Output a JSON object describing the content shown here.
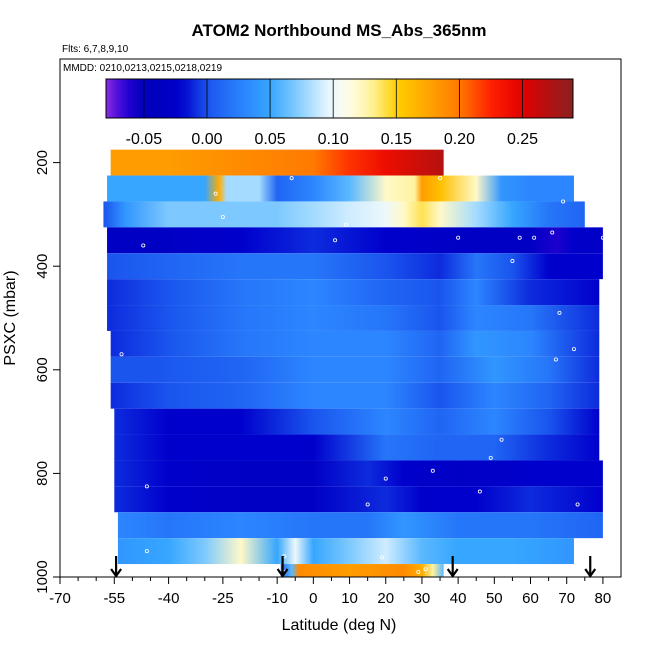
{
  "chart_data": {
    "type": "heatmap",
    "title": "ATOM2 Northbound MS_Abs_365nm",
    "flights_label": "Flts: 6,7,8,9,10",
    "dates_label": "MMDD: 0210,0213,0215,0218,0219",
    "xlabel": "Latitude (deg N)",
    "ylabel": "PSXC (mbar)",
    "x_ticks": [
      -70,
      -55,
      -40,
      -25,
      -10,
      0,
      10,
      20,
      30,
      40,
      50,
      60,
      70,
      80
    ],
    "x_tick_labels": [
      "-70",
      "-55",
      "-40",
      "-25",
      "-10",
      "0",
      "10",
      "20",
      "30",
      "40",
      "50",
      "60",
      "70",
      "80"
    ],
    "x_minor_ticks": [
      -65,
      -60,
      -50,
      -45,
      -35,
      -30,
      -20,
      -15,
      -5,
      5,
      15,
      25,
      35,
      45,
      55,
      65,
      75
    ],
    "y_ticks": [
      200,
      400,
      600,
      800,
      1000
    ],
    "y_tick_labels": [
      "200",
      "400",
      "600",
      "800",
      "1000"
    ],
    "xlim": [
      -70,
      85
    ],
    "ylim": [
      1000,
      0
    ],
    "colorbar": {
      "min": -0.08,
      "max": 0.29,
      "ticks": [
        -0.05,
        0.0,
        0.05,
        0.1,
        0.15,
        0.2,
        0.25
      ],
      "tick_labels": [
        "-0.05",
        "0.00",
        "0.05",
        "0.10",
        "0.15",
        "0.20",
        "0.25"
      ]
    },
    "legend": "top",
    "grid": false,
    "profile_latitudes": [
      -54.5,
      -8.5,
      38.5,
      76.5
    ],
    "layers": [
      {
        "p_top": 175,
        "p_bot": 225,
        "lat_min": -56,
        "lat_max": 36,
        "values": [
          [
            -56,
            0.18
          ],
          [
            -40,
            0.18
          ],
          [
            -20,
            0.19
          ],
          [
            0,
            0.2
          ],
          [
            10,
            0.22
          ],
          [
            20,
            0.24
          ],
          [
            36,
            0.27
          ]
        ]
      },
      {
        "p_top": 225,
        "p_bot": 275,
        "lat_min": -57,
        "lat_max": 72,
        "values": [
          [
            -57,
            0.05
          ],
          [
            -30,
            0.05
          ],
          [
            -26,
            0.17
          ],
          [
            -24,
            0.08
          ],
          [
            -15,
            0.08
          ],
          [
            -10,
            0.01
          ],
          [
            0,
            0.03
          ],
          [
            10,
            0.06
          ],
          [
            20,
            0.12
          ],
          [
            28,
            0.13
          ],
          [
            30,
            0.18
          ],
          [
            35,
            0.16
          ],
          [
            45,
            0.12
          ],
          [
            52,
            0.04
          ],
          [
            60,
            0.03
          ],
          [
            72,
            0.03
          ]
        ]
      },
      {
        "p_top": 275,
        "p_bot": 325,
        "lat_min": -58,
        "lat_max": 75,
        "values": [
          [
            -58,
            0.0
          ],
          [
            -52,
            0.04
          ],
          [
            -40,
            0.07
          ],
          [
            -25,
            0.07
          ],
          [
            -10,
            0.07
          ],
          [
            0,
            0.08
          ],
          [
            10,
            0.09
          ],
          [
            20,
            0.1
          ],
          [
            25,
            0.12
          ],
          [
            30,
            0.14
          ],
          [
            35,
            0.12
          ],
          [
            45,
            0.08
          ],
          [
            55,
            0.05
          ],
          [
            65,
            0.02
          ],
          [
            75,
            0.01
          ]
        ]
      },
      {
        "p_top": 325,
        "p_bot": 375,
        "lat_min": -57,
        "lat_max": 80,
        "values": [
          [
            -57,
            -0.03
          ],
          [
            -40,
            -0.03
          ],
          [
            -20,
            -0.02
          ],
          [
            0,
            -0.01
          ],
          [
            20,
            -0.02
          ],
          [
            40,
            -0.03
          ],
          [
            60,
            -0.03
          ],
          [
            67,
            -0.06
          ],
          [
            72,
            -0.02
          ],
          [
            80,
            -0.03
          ]
        ]
      },
      {
        "p_top": 375,
        "p_bot": 425,
        "lat_min": -57,
        "lat_max": 80,
        "values": [
          [
            -57,
            0.0
          ],
          [
            -40,
            0.01
          ],
          [
            -20,
            0.02
          ],
          [
            0,
            0.02
          ],
          [
            20,
            0.0
          ],
          [
            35,
            -0.01
          ],
          [
            45,
            0.02
          ],
          [
            55,
            0.0
          ],
          [
            65,
            -0.02
          ],
          [
            80,
            -0.02
          ]
        ]
      },
      {
        "p_top": 425,
        "p_bot": 475,
        "lat_min": -57,
        "lat_max": 79,
        "values": [
          [
            -57,
            -0.01
          ],
          [
            -40,
            0.0
          ],
          [
            -20,
            0.02
          ],
          [
            0,
            0.03
          ],
          [
            20,
            0.01
          ],
          [
            35,
            0.0
          ],
          [
            45,
            0.03
          ],
          [
            60,
            -0.01
          ],
          [
            79,
            -0.02
          ]
        ]
      },
      {
        "p_top": 475,
        "p_bot": 525,
        "lat_min": -57,
        "lat_max": 79,
        "values": [
          [
            -57,
            -0.01
          ],
          [
            -40,
            0.0
          ],
          [
            -20,
            0.02
          ],
          [
            0,
            0.03
          ],
          [
            20,
            0.02
          ],
          [
            35,
            0.0
          ],
          [
            45,
            0.03
          ],
          [
            60,
            0.02
          ],
          [
            79,
            -0.01
          ]
        ]
      },
      {
        "p_top": 525,
        "p_bot": 575,
        "lat_min": -56,
        "lat_max": 79,
        "values": [
          [
            -56,
            -0.01
          ],
          [
            -40,
            0.0
          ],
          [
            -20,
            0.02
          ],
          [
            0,
            0.03
          ],
          [
            20,
            0.03
          ],
          [
            35,
            0.01
          ],
          [
            45,
            0.04
          ],
          [
            60,
            0.03
          ],
          [
            79,
            -0.01
          ]
        ]
      },
      {
        "p_top": 575,
        "p_bot": 625,
        "lat_min": -56,
        "lat_max": 79,
        "values": [
          [
            -56,
            0.0
          ],
          [
            -45,
            0.0
          ],
          [
            -20,
            0.01
          ],
          [
            0,
            0.03
          ],
          [
            20,
            0.03
          ],
          [
            35,
            0.01
          ],
          [
            50,
            0.04
          ],
          [
            65,
            0.02
          ],
          [
            79,
            -0.01
          ]
        ]
      },
      {
        "p_top": 625,
        "p_bot": 675,
        "lat_min": -56,
        "lat_max": 79,
        "values": [
          [
            -56,
            -0.01
          ],
          [
            -40,
            0.0
          ],
          [
            -20,
            0.01
          ],
          [
            0,
            0.03
          ],
          [
            20,
            0.03
          ],
          [
            35,
            0.0
          ],
          [
            50,
            0.03
          ],
          [
            65,
            0.01
          ],
          [
            79,
            -0.01
          ]
        ]
      },
      {
        "p_top": 675,
        "p_bot": 725,
        "lat_min": -55,
        "lat_max": 79,
        "values": [
          [
            -55,
            -0.01
          ],
          [
            -40,
            -0.02
          ],
          [
            -20,
            -0.02
          ],
          [
            0,
            0.0
          ],
          [
            20,
            0.03
          ],
          [
            35,
            0.01
          ],
          [
            50,
            0.03
          ],
          [
            65,
            0.0
          ],
          [
            79,
            -0.02
          ]
        ]
      },
      {
        "p_top": 725,
        "p_bot": 775,
        "lat_min": -55,
        "lat_max": 79,
        "values": [
          [
            -55,
            -0.01
          ],
          [
            -40,
            -0.02
          ],
          [
            -20,
            -0.02
          ],
          [
            0,
            -0.02
          ],
          [
            20,
            0.02
          ],
          [
            35,
            0.01
          ],
          [
            50,
            0.01
          ],
          [
            65,
            -0.01
          ],
          [
            79,
            -0.02
          ]
        ]
      },
      {
        "p_top": 775,
        "p_bot": 825,
        "lat_min": -55,
        "lat_max": 80,
        "values": [
          [
            -55,
            -0.01
          ],
          [
            -40,
            -0.02
          ],
          [
            -20,
            -0.03
          ],
          [
            0,
            -0.03
          ],
          [
            15,
            -0.01
          ],
          [
            25,
            -0.02
          ],
          [
            40,
            -0.03
          ],
          [
            60,
            -0.02
          ],
          [
            80,
            -0.02
          ]
        ]
      },
      {
        "p_top": 825,
        "p_bot": 875,
        "lat_min": -55,
        "lat_max": 80,
        "values": [
          [
            -55,
            -0.01
          ],
          [
            -40,
            -0.02
          ],
          [
            -20,
            -0.03
          ],
          [
            0,
            -0.03
          ],
          [
            20,
            -0.01
          ],
          [
            30,
            -0.02
          ],
          [
            45,
            -0.02
          ],
          [
            60,
            -0.01
          ],
          [
            80,
            -0.02
          ]
        ]
      },
      {
        "p_top": 875,
        "p_bot": 925,
        "lat_min": -54,
        "lat_max": 80,
        "values": [
          [
            -54,
            0.03
          ],
          [
            -40,
            0.02
          ],
          [
            -20,
            0.03
          ],
          [
            0,
            0.02
          ],
          [
            15,
            0.02
          ],
          [
            25,
            0.04
          ],
          [
            40,
            0.02
          ],
          [
            60,
            0.02
          ],
          [
            80,
            0.01
          ]
        ]
      },
      {
        "p_top": 925,
        "p_bot": 975,
        "lat_min": -54,
        "lat_max": 72,
        "values": [
          [
            -54,
            0.04
          ],
          [
            -40,
            0.05
          ],
          [
            -30,
            0.07
          ],
          [
            -20,
            0.12
          ],
          [
            -10,
            0.05
          ],
          [
            -5,
            0.1
          ],
          [
            0,
            0.05
          ],
          [
            10,
            0.07
          ],
          [
            20,
            0.09
          ],
          [
            30,
            0.06
          ],
          [
            40,
            0.05
          ],
          [
            55,
            0.05
          ],
          [
            72,
            0.04
          ]
        ]
      },
      {
        "p_top": 975,
        "p_bot": 1010,
        "lat_min": -9,
        "lat_max": 36,
        "values": [
          [
            -9,
            0.01
          ],
          [
            -6,
            0.06
          ],
          [
            -4,
            0.19
          ],
          [
            10,
            0.18
          ],
          [
            25,
            0.19
          ],
          [
            30,
            0.17
          ],
          [
            33,
            0.13
          ],
          [
            36,
            0.06
          ]
        ]
      }
    ],
    "sample_points": [
      [
        -27,
        260
      ],
      [
        -6,
        230
      ],
      [
        -25,
        305
      ],
      [
        9,
        320
      ],
      [
        35,
        230
      ],
      [
        69,
        275
      ],
      [
        73,
        260
      ],
      [
        6,
        350
      ],
      [
        -47,
        360
      ],
      [
        40,
        345
      ],
      [
        57,
        345
      ],
      [
        61,
        345
      ],
      [
        66,
        335
      ],
      [
        80,
        345
      ],
      [
        55,
        390
      ],
      [
        68,
        490
      ],
      [
        72,
        560
      ],
      [
        67,
        580
      ],
      [
        -53,
        570
      ],
      [
        52,
        735
      ],
      [
        49,
        770
      ],
      [
        33,
        795
      ],
      [
        20,
        810
      ],
      [
        -46,
        825
      ],
      [
        46,
        835
      ],
      [
        15,
        860
      ],
      [
        73,
        860
      ],
      [
        -57,
        950
      ],
      [
        -46,
        950
      ],
      [
        -8,
        960
      ],
      [
        19,
        962
      ],
      [
        29,
        990
      ],
      [
        31,
        985
      ],
      [
        -8,
        990
      ]
    ]
  }
}
